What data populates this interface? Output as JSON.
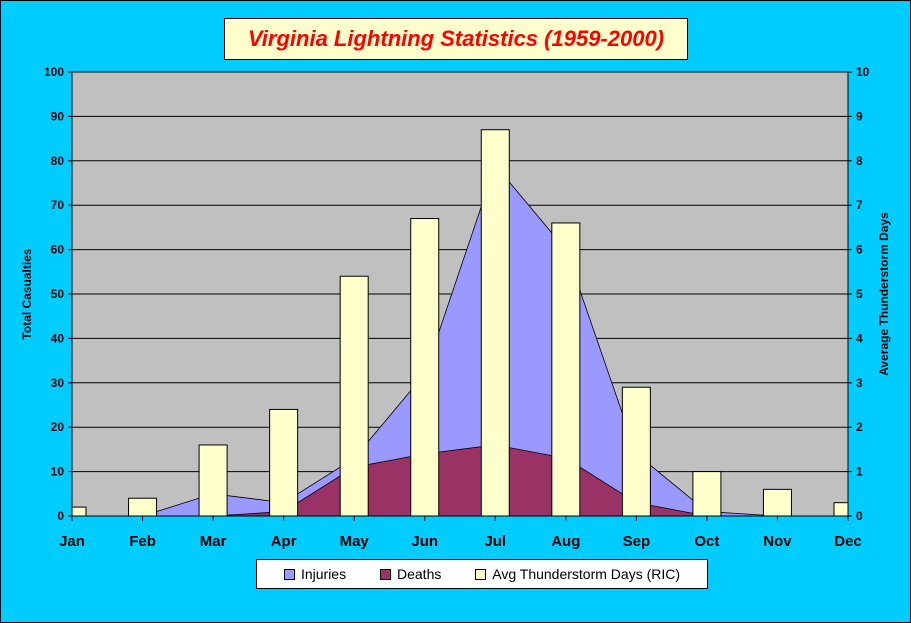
{
  "chart_data": {
    "type": "area",
    "title": "Virginia Lightning Statistics (1959-2000)",
    "categories": [
      "Jan",
      "Feb",
      "Mar",
      "Apr",
      "May",
      "Jun",
      "Jul",
      "Aug",
      "Sep",
      "Oct",
      "Nov",
      "Dec"
    ],
    "ylabel": "Total Casualties",
    "y2label": "Average Thunderstorm Days",
    "ylim": [
      0,
      100
    ],
    "y2lim": [
      0,
      10
    ],
    "yticks": [
      "0",
      "10",
      "20",
      "30",
      "40",
      "50",
      "60",
      "70",
      "80",
      "90",
      "100"
    ],
    "y2ticks": [
      "0",
      "1",
      "2",
      "3",
      "4",
      "5",
      "6",
      "7",
      "8",
      "9",
      "10"
    ],
    "grid": true,
    "legend_position": "bottom",
    "series": [
      {
        "name": "Injuries",
        "kind": "area",
        "axis": "left",
        "color": "#9999ff",
        "values": [
          0,
          0,
          5,
          3,
          13,
          32,
          79,
          60,
          14,
          1,
          0,
          0
        ]
      },
      {
        "name": "Deaths",
        "kind": "area",
        "axis": "left",
        "color": "#993366",
        "values": [
          0,
          0,
          0,
          1,
          11,
          14,
          16,
          13,
          3,
          0,
          0,
          0
        ]
      },
      {
        "name": "Avg Thunderstorm Days (RIC)",
        "kind": "bar",
        "axis": "right",
        "color": "#ffffcc",
        "values": [
          0.2,
          0.4,
          1.6,
          2.4,
          5.4,
          6.7,
          8.7,
          6.6,
          2.9,
          1.0,
          0.6,
          0.3
        ]
      }
    ]
  },
  "colors": {
    "background": "#00ccff",
    "plot_area": "#c0c0c0",
    "title_text": "#ff0000",
    "title_box": "#ffffcc"
  }
}
